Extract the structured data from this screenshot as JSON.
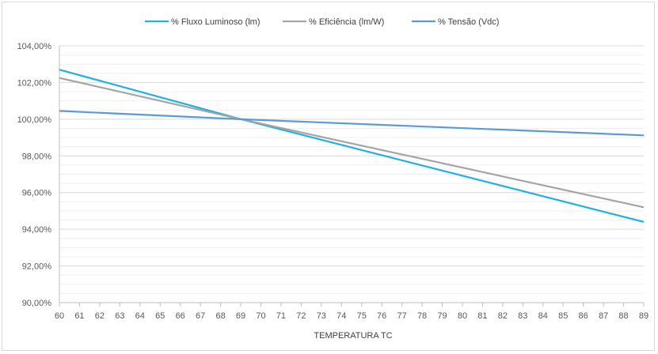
{
  "chart_data": {
    "type": "line",
    "title": "",
    "xlabel": "TEMPERATURA TC",
    "ylabel": "",
    "x": [
      60,
      61,
      62,
      63,
      64,
      65,
      66,
      67,
      68,
      69,
      70,
      71,
      72,
      73,
      74,
      75,
      76,
      77,
      78,
      79,
      80,
      81,
      82,
      83,
      84,
      85,
      86,
      87,
      88,
      89
    ],
    "ylim": [
      90,
      104
    ],
    "y_ticks": [
      "90,00%",
      "92,00%",
      "94,00%",
      "96,00%",
      "98,00%",
      "100,00%",
      "102,00%",
      "104,00%"
    ],
    "y_tick_values": [
      90,
      92,
      94,
      96,
      98,
      100,
      102,
      104
    ],
    "grid": true,
    "legend_position": "top",
    "series": [
      {
        "name": "% Fluxo Luminoso (lm)",
        "color": "#1fb0e4",
        "start": 102.7,
        "end": 94.4,
        "pivot": 69
      },
      {
        "name": "% Eficiência (lm/W)",
        "color": "#a5a5a5",
        "start": 102.25,
        "end": 95.2,
        "pivot": 69
      },
      {
        "name": "% Tensão (Vdc)",
        "color": "#5b9bd5",
        "start": 100.45,
        "end": 99.12,
        "pivot": 69
      }
    ]
  }
}
